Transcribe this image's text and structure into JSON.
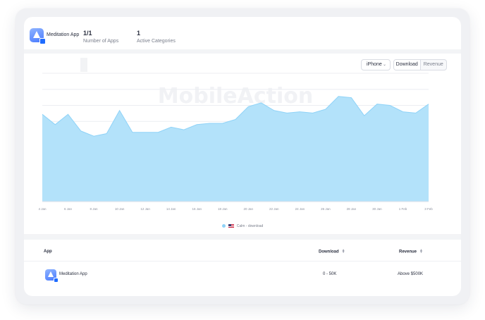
{
  "header": {
    "app_name": "Meditation App",
    "stats": [
      {
        "value": "1/1",
        "label": "Number of Apps"
      },
      {
        "value": "1",
        "label": "Active Categories"
      }
    ]
  },
  "controls": {
    "device": "iPhone",
    "metric_options": [
      "Download",
      "Revenue"
    ],
    "metric_selected": "Download"
  },
  "watermark": "MobileAction",
  "chart_data": {
    "type": "area",
    "x": [
      "4 Jan",
      "5 Jan",
      "6 Jan",
      "7 Jan",
      "8 Jan",
      "9 Jan",
      "10 Jan",
      "11 Jan",
      "12 Jan",
      "13 Jan",
      "14 Jan",
      "15 Jan",
      "16 Jan",
      "17 Jan",
      "18 Jan",
      "19 Jan",
      "20 Jan",
      "21 Jan",
      "22 Jan",
      "23 Jan",
      "24 Jan",
      "25 Jan",
      "26 Jan",
      "27 Jan",
      "28 Jan",
      "29 Jan",
      "30 Jan",
      "31 Jan",
      "1 Feb",
      "2 Feb",
      "3 Feb"
    ],
    "tick_labels": [
      "4 Jan",
      "6 Jan",
      "8 Jan",
      "10 Jan",
      "12 Jan",
      "14 Jan",
      "16 Jan",
      "18 Jan",
      "20 Jan",
      "22 Jan",
      "24 Jan",
      "26 Jan",
      "28 Jan",
      "30 Jan",
      "1 Feb",
      "3 Feb"
    ],
    "series": [
      {
        "name": "Calm - download",
        "values": [
          68,
          60,
          68,
          55,
          51,
          53,
          71,
          54,
          54,
          54,
          58,
          56,
          60,
          61,
          61,
          64,
          74,
          77,
          71,
          69,
          70,
          69,
          72,
          82,
          81,
          67,
          76,
          75,
          70,
          69,
          76
        ]
      }
    ],
    "ylim": [
      0,
      100
    ],
    "grid": true,
    "legend": "bottom-center",
    "colors": {
      "fill": "#b3e2fa",
      "stroke": "#8fd3f8"
    }
  },
  "table": {
    "columns": [
      "App",
      "Download",
      "Revenue"
    ],
    "rows": [
      {
        "app": "Meditation App",
        "download": "0 - 50K",
        "revenue": "Above $500K"
      }
    ]
  }
}
